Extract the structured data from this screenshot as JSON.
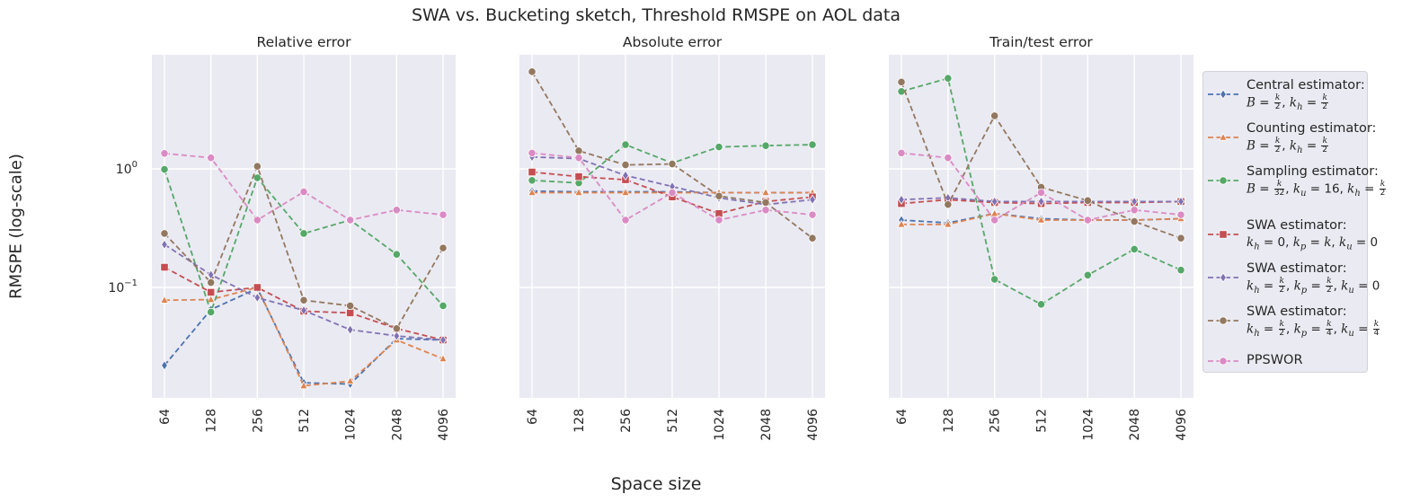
{
  "suptitle": "SWA vs. Bucketing sketch, Threshold RMSPE on AOL data",
  "ylabel": "RMSPE (log-scale)",
  "xlabel": "Space size",
  "colors": {
    "background": "#eaeaf2",
    "grid": "#ffffff",
    "central": "#4c72b0",
    "counting": "#dd8452",
    "sampling": "#55a868",
    "swa1": "#c44e52",
    "swa2": "#8172b3",
    "swa3": "#937860",
    "ppswor": "#da8bc3"
  },
  "legend": [
    {
      "key": "central",
      "marker": "diamond",
      "line1": "Central estimator:",
      "line2": "B = k/2, k_h = k/2"
    },
    {
      "key": "counting",
      "marker": "triangle",
      "line1": "Counting estimator:",
      "line2": "B = k/2, k_h = k/2"
    },
    {
      "key": "sampling",
      "marker": "circle",
      "line1": "Sampling estimator:",
      "line2": "B = k/32, k_u = 16, k_h = k/2"
    },
    {
      "key": "swa1",
      "marker": "square",
      "line1": "SWA estimator:",
      "line2": "k_h = 0, k_p = k, k_u = 0"
    },
    {
      "key": "swa2",
      "marker": "diamond",
      "line1": "SWA estimator:",
      "line2": "k_h = k/2, k_p = k/2, k_u = 0"
    },
    {
      "key": "swa3",
      "marker": "circle",
      "line1": "SWA estimator:",
      "line2": "k_h = k/2, k_p = k/4, k_u = k/4"
    },
    {
      "key": "ppswor",
      "marker": "circle",
      "line1": "PPSWOR",
      "line2": ""
    }
  ],
  "chart_data": [
    {
      "type": "line",
      "title": "Relative error",
      "x": [
        "64",
        "128",
        "256",
        "512",
        "1024",
        "2048",
        "4096"
      ],
      "yscale": "log",
      "yticks": [
        "10^0",
        "10^-1"
      ],
      "grid": true,
      "legend_position": "outside-right",
      "series": [
        {
          "name": "central",
          "values": [
            0.022,
            0.065,
            0.098,
            0.0157,
            0.0153,
            0.037,
            0.036
          ]
        },
        {
          "name": "counting",
          "values": [
            0.078,
            0.079,
            0.1,
            0.0148,
            0.0162,
            0.036,
            0.025
          ]
        },
        {
          "name": "sampling",
          "values": [
            0.99,
            0.062,
            0.84,
            0.285,
            0.37,
            0.19,
            0.07
          ]
        },
        {
          "name": "swa1",
          "values": [
            0.148,
            0.091,
            0.1,
            0.063,
            0.061,
            0.045,
            0.036
          ]
        },
        {
          "name": "swa2",
          "values": [
            0.23,
            0.128,
            0.082,
            0.064,
            0.044,
            0.039,
            0.036
          ]
        },
        {
          "name": "swa3",
          "values": [
            0.285,
            0.11,
            1.05,
            0.078,
            0.07,
            0.045,
            0.215
          ]
        },
        {
          "name": "ppswor",
          "values": [
            1.35,
            1.24,
            0.37,
            0.64,
            0.37,
            0.45,
            0.41
          ]
        }
      ]
    },
    {
      "type": "line",
      "title": "Absolute error",
      "x": [
        "64",
        "128",
        "256",
        "512",
        "1024",
        "2048",
        "4096"
      ],
      "yscale": "log",
      "grid": true,
      "series": [
        {
          "name": "central",
          "values": [
            0.65,
            0.64,
            0.64,
            0.64,
            0.63,
            0.63,
            0.63
          ]
        },
        {
          "name": "counting",
          "values": [
            0.63,
            0.63,
            0.63,
            0.63,
            0.63,
            0.63,
            0.63
          ]
        },
        {
          "name": "sampling",
          "values": [
            0.8,
            0.76,
            1.6,
            1.12,
            1.53,
            1.57,
            1.6
          ]
        },
        {
          "name": "swa1",
          "values": [
            0.94,
            0.86,
            0.81,
            0.58,
            0.42,
            0.53,
            0.58
          ]
        },
        {
          "name": "swa2",
          "values": [
            1.26,
            1.22,
            0.88,
            0.71,
            0.57,
            0.5,
            0.55
          ]
        },
        {
          "name": "swa3",
          "values": [
            6.6,
            1.42,
            1.08,
            1.1,
            0.59,
            0.52,
            0.26
          ]
        },
        {
          "name": "ppswor",
          "values": [
            1.36,
            1.24,
            0.37,
            0.63,
            0.37,
            0.45,
            0.41
          ]
        }
      ]
    },
    {
      "type": "line",
      "title": "Train/test error",
      "x": [
        "64",
        "128",
        "256",
        "512",
        "1024",
        "2048",
        "4096"
      ],
      "yscale": "log",
      "grid": true,
      "series": [
        {
          "name": "central",
          "values": [
            0.37,
            0.35,
            0.42,
            0.38,
            0.37,
            0.37,
            0.38
          ]
        },
        {
          "name": "counting",
          "values": [
            0.34,
            0.34,
            0.42,
            0.37,
            0.37,
            0.37,
            0.38
          ]
        },
        {
          "name": "sampling",
          "values": [
            4.5,
            5.8,
            0.117,
            0.072,
            0.127,
            0.21,
            0.14
          ]
        },
        {
          "name": "swa1",
          "values": [
            0.51,
            0.55,
            0.52,
            0.51,
            0.52,
            0.52,
            0.53
          ]
        },
        {
          "name": "swa2",
          "values": [
            0.55,
            0.57,
            0.53,
            0.53,
            0.53,
            0.53,
            0.53
          ]
        },
        {
          "name": "swa3",
          "values": [
            5.4,
            0.5,
            2.8,
            0.7,
            0.54,
            0.36,
            0.26
          ]
        },
        {
          "name": "ppswor",
          "values": [
            1.36,
            1.24,
            0.37,
            0.63,
            0.37,
            0.45,
            0.41
          ]
        }
      ]
    }
  ]
}
